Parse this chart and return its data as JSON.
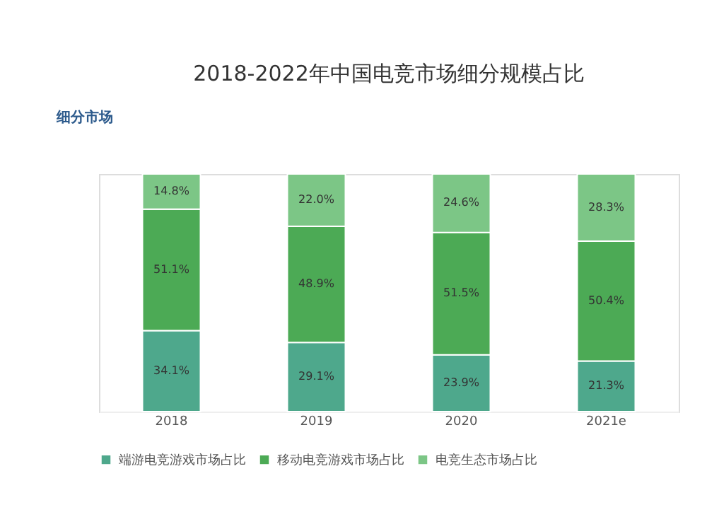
{
  "chart_data": {
    "type": "bar",
    "stacked": true,
    "title": "2018-2022年中国电竞市场细分规模占比",
    "annotations": [
      "细分市场"
    ],
    "categories": [
      "2018",
      "2019",
      "2020",
      "2021e"
    ],
    "ylim": [
      0,
      100
    ],
    "series": [
      {
        "name": "端游电竞游戏市场占比",
        "color": "#4ea88c",
        "values": [
          34.1,
          29.1,
          23.9,
          21.3
        ],
        "value_labels": [
          "34.1%",
          "29.1%",
          "23.9%",
          "21.3%"
        ]
      },
      {
        "name": "移动电竞游戏市场占比",
        "color": "#4caa55",
        "values": [
          51.1,
          48.9,
          51.5,
          50.4
        ],
        "value_labels": [
          "51.1%",
          "48.9%",
          "51.5%",
          "50.4%"
        ]
      },
      {
        "name": "电竞生态市场占比",
        "color": "#7cc686",
        "values": [
          14.8,
          22.0,
          24.6,
          28.3
        ],
        "value_labels": [
          "14.8%",
          "22.0%",
          "24.6%",
          "28.3%"
        ]
      }
    ],
    "legend": "bottom"
  }
}
